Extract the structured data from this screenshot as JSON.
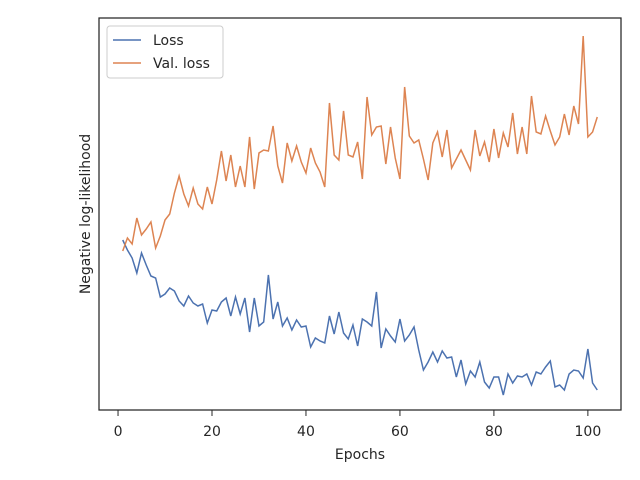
{
  "chart_data": {
    "type": "line",
    "xlabel": "Epochs",
    "ylabel": "Negative log-likelihood",
    "x": [
      1,
      2,
      3,
      4,
      5,
      6,
      7,
      8,
      9,
      10,
      11,
      12,
      13,
      14,
      15,
      16,
      17,
      18,
      19,
      20,
      21,
      22,
      23,
      24,
      25,
      26,
      27,
      28,
      29,
      30,
      31,
      32,
      33,
      34,
      35,
      36,
      37,
      38,
      39,
      40,
      41,
      42,
      43,
      44,
      45,
      46,
      47,
      48,
      49,
      50,
      51,
      52,
      53,
      54,
      55,
      56,
      57,
      58,
      59,
      60,
      61,
      62,
      63,
      64,
      65,
      66,
      67,
      68,
      69,
      70,
      71,
      72,
      73,
      74,
      75,
      76,
      77,
      78,
      79,
      80,
      81,
      82,
      83,
      84,
      85,
      86,
      87,
      88,
      89,
      90,
      91,
      92,
      93,
      94,
      95,
      96,
      97,
      98,
      99,
      100,
      101,
      102
    ],
    "series": [
      {
        "name": "Loss",
        "color": "#4c72b0",
        "values": [
          170,
          160,
          152,
          137,
          157,
          145,
          134,
          132,
          113,
          116,
          122,
          119,
          109,
          104,
          114,
          107,
          104,
          106,
          87,
          100,
          99,
          108,
          112,
          94,
          113,
          96,
          112,
          78,
          112,
          84,
          88,
          135,
          91,
          108,
          84,
          92,
          80,
          90,
          83,
          84,
          63,
          72,
          69,
          67,
          94,
          76,
          98,
          77,
          71,
          85,
          64,
          91,
          88,
          84,
          118,
          62,
          81,
          74,
          68,
          91,
          69,
          75,
          83,
          60,
          40,
          48,
          58,
          48,
          59,
          52,
          53,
          33,
          50,
          26,
          39,
          33,
          48,
          28,
          22,
          33,
          33,
          15,
          36,
          27,
          34,
          33,
          36,
          25,
          38,
          36,
          43,
          49,
          23,
          25,
          20,
          36,
          40,
          39,
          32,
          61,
          27,
          20
        ]
      },
      {
        "name": "Val. loss",
        "color": "#dd8452",
        "values": [
          159,
          172,
          166,
          192,
          175,
          181,
          188,
          162,
          174,
          190,
          196,
          217,
          234,
          216,
          204,
          222,
          206,
          201,
          223,
          206,
          230,
          259,
          229,
          255,
          223,
          244,
          223,
          273,
          221,
          257,
          260,
          259,
          284,
          244,
          227,
          267,
          249,
          264,
          248,
          237,
          262,
          247,
          238,
          223,
          307,
          255,
          250,
          299,
          255,
          253,
          268,
          231,
          313,
          275,
          283,
          284,
          246,
          283,
          252,
          231,
          323,
          274,
          267,
          270,
          251,
          230,
          267,
          278,
          253,
          280,
          242,
          251,
          260,
          250,
          240,
          280,
          254,
          268,
          248,
          281,
          252,
          277,
          263,
          297,
          256,
          283,
          256,
          314,
          278,
          276,
          294,
          279,
          265,
          273,
          296,
          275,
          304,
          286,
          374,
          273,
          278,
          293
        ]
      }
    ],
    "xlim": [
      -4.05,
      107.05
    ],
    "xticks": [
      0,
      20,
      40,
      60,
      80,
      100
    ],
    "ylim": [
      0,
      392
    ],
    "legend": "upper left"
  }
}
